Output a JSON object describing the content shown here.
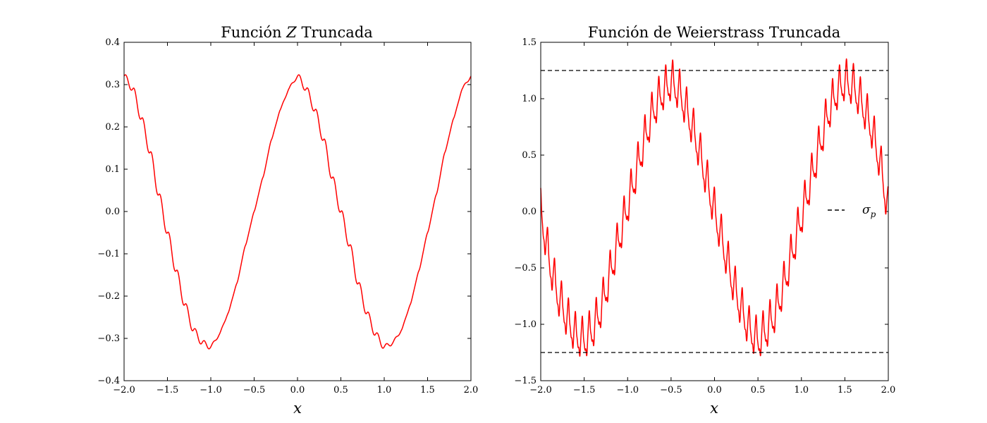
{
  "chart_data": [
    {
      "type": "line",
      "title": "Función Z Truncada",
      "title_parts": [
        "Función ",
        "Z",
        " Truncada"
      ],
      "xlabel": "x",
      "ylabel": "",
      "xlim": [
        -2.0,
        2.0
      ],
      "ylim": [
        -0.4,
        0.4
      ],
      "xticks": [
        -2.0,
        -1.5,
        -1.0,
        -0.5,
        0.0,
        0.5,
        1.0,
        1.5,
        2.0
      ],
      "xtick_labels": [
        "−2.0",
        "−1.5",
        "−1.0",
        "−0.5",
        "0.0",
        "0.5",
        "1.0",
        "1.5",
        "2.0"
      ],
      "yticks": [
        -0.4,
        -0.3,
        -0.2,
        -0.1,
        0.0,
        0.1,
        0.2,
        0.3,
        0.4
      ],
      "ytick_labels": [
        "−0.4",
        "−0.3",
        "−0.2",
        "−0.1",
        "0.0",
        "0.1",
        "0.2",
        "0.3",
        "0.4"
      ],
      "grid": false,
      "series": [
        {
          "color": "#ff0000",
          "x": [
            -2.0,
            -1.9,
            -1.8,
            -1.7,
            -1.6,
            -1.5,
            -1.4,
            -1.3,
            -1.2,
            -1.1,
            -1.0,
            -0.9,
            -0.8,
            -0.7,
            -0.6,
            -0.5,
            -0.4,
            -0.3,
            -0.2,
            -0.1,
            0.0,
            0.1,
            0.2,
            0.3,
            0.4,
            0.5,
            0.6,
            0.7,
            0.8,
            0.9,
            1.0,
            1.1,
            1.2,
            1.3,
            1.4,
            1.5,
            1.6,
            1.7,
            1.8,
            1.9,
            2.0
          ],
          "y": [
            0.32,
            0.29,
            0.22,
            0.14,
            0.04,
            -0.05,
            -0.14,
            -0.22,
            -0.28,
            -0.31,
            -0.32,
            -0.29,
            -0.24,
            -0.17,
            -0.08,
            0.0,
            0.08,
            0.17,
            0.24,
            0.29,
            0.32,
            0.29,
            0.24,
            0.17,
            0.08,
            0.0,
            -0.08,
            -0.17,
            -0.24,
            -0.29,
            -0.32,
            -0.31,
            -0.28,
            -0.22,
            -0.14,
            -0.05,
            0.04,
            0.14,
            0.22,
            0.29,
            0.32
          ]
        }
      ]
    },
    {
      "type": "line",
      "title": "Función de Weierstrass Truncada",
      "xlabel": "x",
      "ylabel": "",
      "xlim": [
        -2.0,
        2.0
      ],
      "ylim": [
        -1.5,
        1.5
      ],
      "xticks": [
        -2.0,
        -1.5,
        -1.0,
        -0.5,
        0.0,
        0.5,
        1.0,
        1.5,
        2.0
      ],
      "xtick_labels": [
        "−2.0",
        "−1.5",
        "−1.0",
        "−0.5",
        "0.0",
        "0.5",
        "1.0",
        "1.5",
        "2.0"
      ],
      "yticks": [
        -1.5,
        -1.0,
        -0.5,
        0.0,
        0.5,
        1.0,
        1.5
      ],
      "ytick_labels": [
        "−1.5",
        "−1.0",
        "−0.5",
        "0.0",
        "0.5",
        "1.0",
        "1.5"
      ],
      "grid": false,
      "legend_placement": "right",
      "legend_label": "σ_p",
      "legend_symbol": "σ",
      "legend_subscript": "p",
      "series": [
        {
          "color": "#ff0000",
          "x": [
            -2.0,
            -1.9,
            -1.8,
            -1.7,
            -1.6,
            -1.5,
            -1.4,
            -1.3,
            -1.2,
            -1.1,
            -1.0,
            -0.9,
            -0.8,
            -0.7,
            -0.6,
            -0.5,
            -0.4,
            -0.3,
            -0.2,
            -0.1,
            0.0,
            0.1,
            0.2,
            0.3,
            0.4,
            0.5,
            0.6,
            0.7,
            0.8,
            0.9,
            1.0,
            1.1,
            1.2,
            1.3,
            1.4,
            1.5,
            1.6,
            1.7,
            1.8,
            1.9,
            2.0
          ],
          "y": [
            0.0,
            -0.45,
            -0.75,
            -0.95,
            -1.1,
            -1.15,
            -1.05,
            -0.85,
            -0.55,
            -0.25,
            0.05,
            0.35,
            0.65,
            0.9,
            1.05,
            1.15,
            1.05,
            0.85,
            0.6,
            0.3,
            0.0,
            -0.3,
            -0.6,
            -0.85,
            -1.05,
            -1.15,
            -1.05,
            -0.9,
            -0.65,
            -0.35,
            -0.05,
            0.25,
            0.55,
            0.85,
            1.05,
            1.15,
            1.1,
            0.95,
            0.75,
            0.45,
            0.0
          ],
          "oscillation_amplitude": [
            0.15,
            0.15,
            0.15,
            0.15,
            0.15,
            0.15,
            0.15,
            0.15,
            0.15,
            0.15,
            0.15,
            0.15,
            0.15,
            0.15,
            0.15,
            0.15,
            0.15,
            0.15,
            0.15,
            0.15,
            0.15,
            0.15,
            0.15,
            0.15,
            0.15,
            0.15,
            0.15,
            0.15,
            0.15,
            0.15,
            0.15,
            0.15,
            0.15,
            0.15,
            0.15,
            0.15,
            0.15,
            0.15,
            0.15,
            0.15,
            0.15
          ],
          "oscillation_cycles_per_unit": 12.5
        },
        {
          "name": "σ_p",
          "color": "#000000",
          "style": "dashed",
          "y": 1.25
        },
        {
          "name": "σ_p",
          "color": "#000000",
          "style": "dashed",
          "y": -1.25
        }
      ]
    }
  ]
}
